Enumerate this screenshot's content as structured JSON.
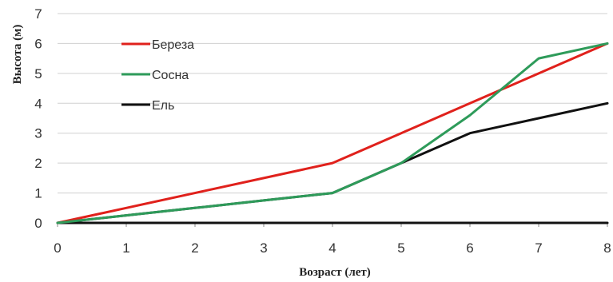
{
  "chart_data": {
    "type": "line",
    "xlabel": "Возраст (лет)",
    "ylabel": "Высота (м)",
    "x": [
      0,
      1,
      2,
      3,
      4,
      5,
      6,
      7,
      8
    ],
    "x_ticks": [
      "0",
      "1",
      "2",
      "3",
      "4",
      "5",
      "6",
      "7",
      "8"
    ],
    "y_ticks": [
      "0",
      "1",
      "2",
      "3",
      "4",
      "5",
      "6",
      "7"
    ],
    "xlim": [
      0,
      8
    ],
    "ylim": [
      0,
      7
    ],
    "grid": "horizontal",
    "legend_position": "top-left",
    "series": [
      {
        "name": "Береза",
        "color": "#e0211c",
        "values": [
          0,
          0.5,
          1,
          1.5,
          2,
          3,
          4,
          5,
          6
        ]
      },
      {
        "name": "Сосна",
        "color": "#2e9b5a",
        "values": [
          0,
          0.25,
          0.5,
          0.75,
          1,
          2,
          3.6,
          5.5,
          6
        ]
      },
      {
        "name": "Ель",
        "color": "#111111",
        "values": [
          0,
          0.25,
          0.5,
          0.75,
          1,
          2,
          3,
          3.5,
          4
        ]
      },
      {
        "name": "",
        "color": "#111111",
        "values": [
          0,
          0,
          0,
          0,
          0,
          0,
          0,
          0,
          0
        ]
      }
    ]
  }
}
